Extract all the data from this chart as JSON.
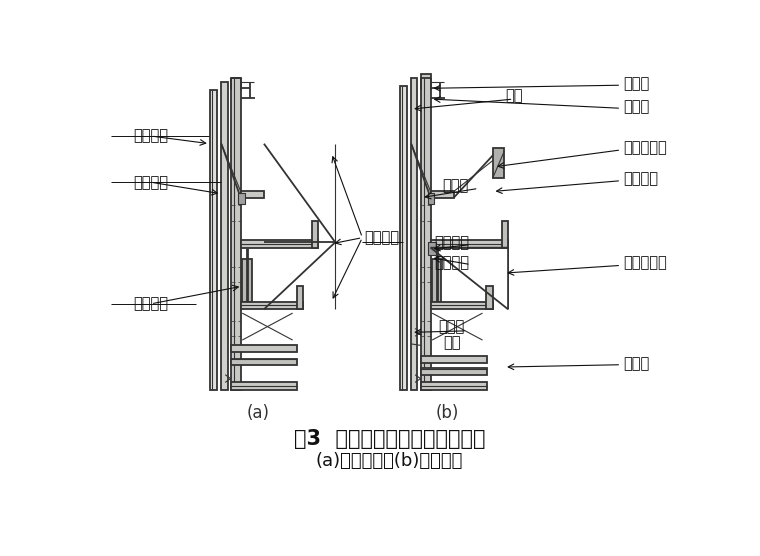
{
  "title_line1": "图3  液压自动爬模系统组成示意",
  "title_line2": "(a)爬模系统；(b)细部构造",
  "label_a": "(a)",
  "label_b": "(b)",
  "line_color": "#333333",
  "title_fontsize": 15,
  "subtitle_fontsize": 13,
  "annot_fontsize": 10.5
}
